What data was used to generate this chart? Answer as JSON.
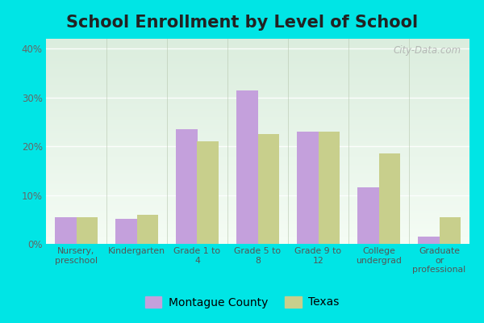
{
  "title": "School Enrollment by Level of School",
  "categories": [
    "Nursery,\npreschool",
    "Kindergarten",
    "Grade 1 to\n4",
    "Grade 5 to\n8",
    "Grade 9 to\n12",
    "College\nundergrad",
    "Graduate\nor\nprofessional"
  ],
  "montague_values": [
    5.5,
    5.2,
    23.5,
    31.5,
    23.0,
    11.5,
    1.5
  ],
  "texas_values": [
    5.5,
    6.0,
    21.0,
    22.5,
    23.0,
    18.5,
    5.5
  ],
  "montague_color": "#c4a0dc",
  "texas_color": "#c8cf8c",
  "ylim": [
    0,
    42
  ],
  "yticks": [
    0,
    10,
    20,
    30,
    40
  ],
  "ytick_labels": [
    "0%",
    "10%",
    "20%",
    "30%",
    "40%"
  ],
  "outer_bg": "#00e5e5",
  "legend_labels": [
    "Montague County",
    "Texas"
  ],
  "bar_width": 0.35,
  "title_fontsize": 15,
  "tick_fontsize": 8.5,
  "legend_fontsize": 10,
  "watermark": "City-Data.com"
}
